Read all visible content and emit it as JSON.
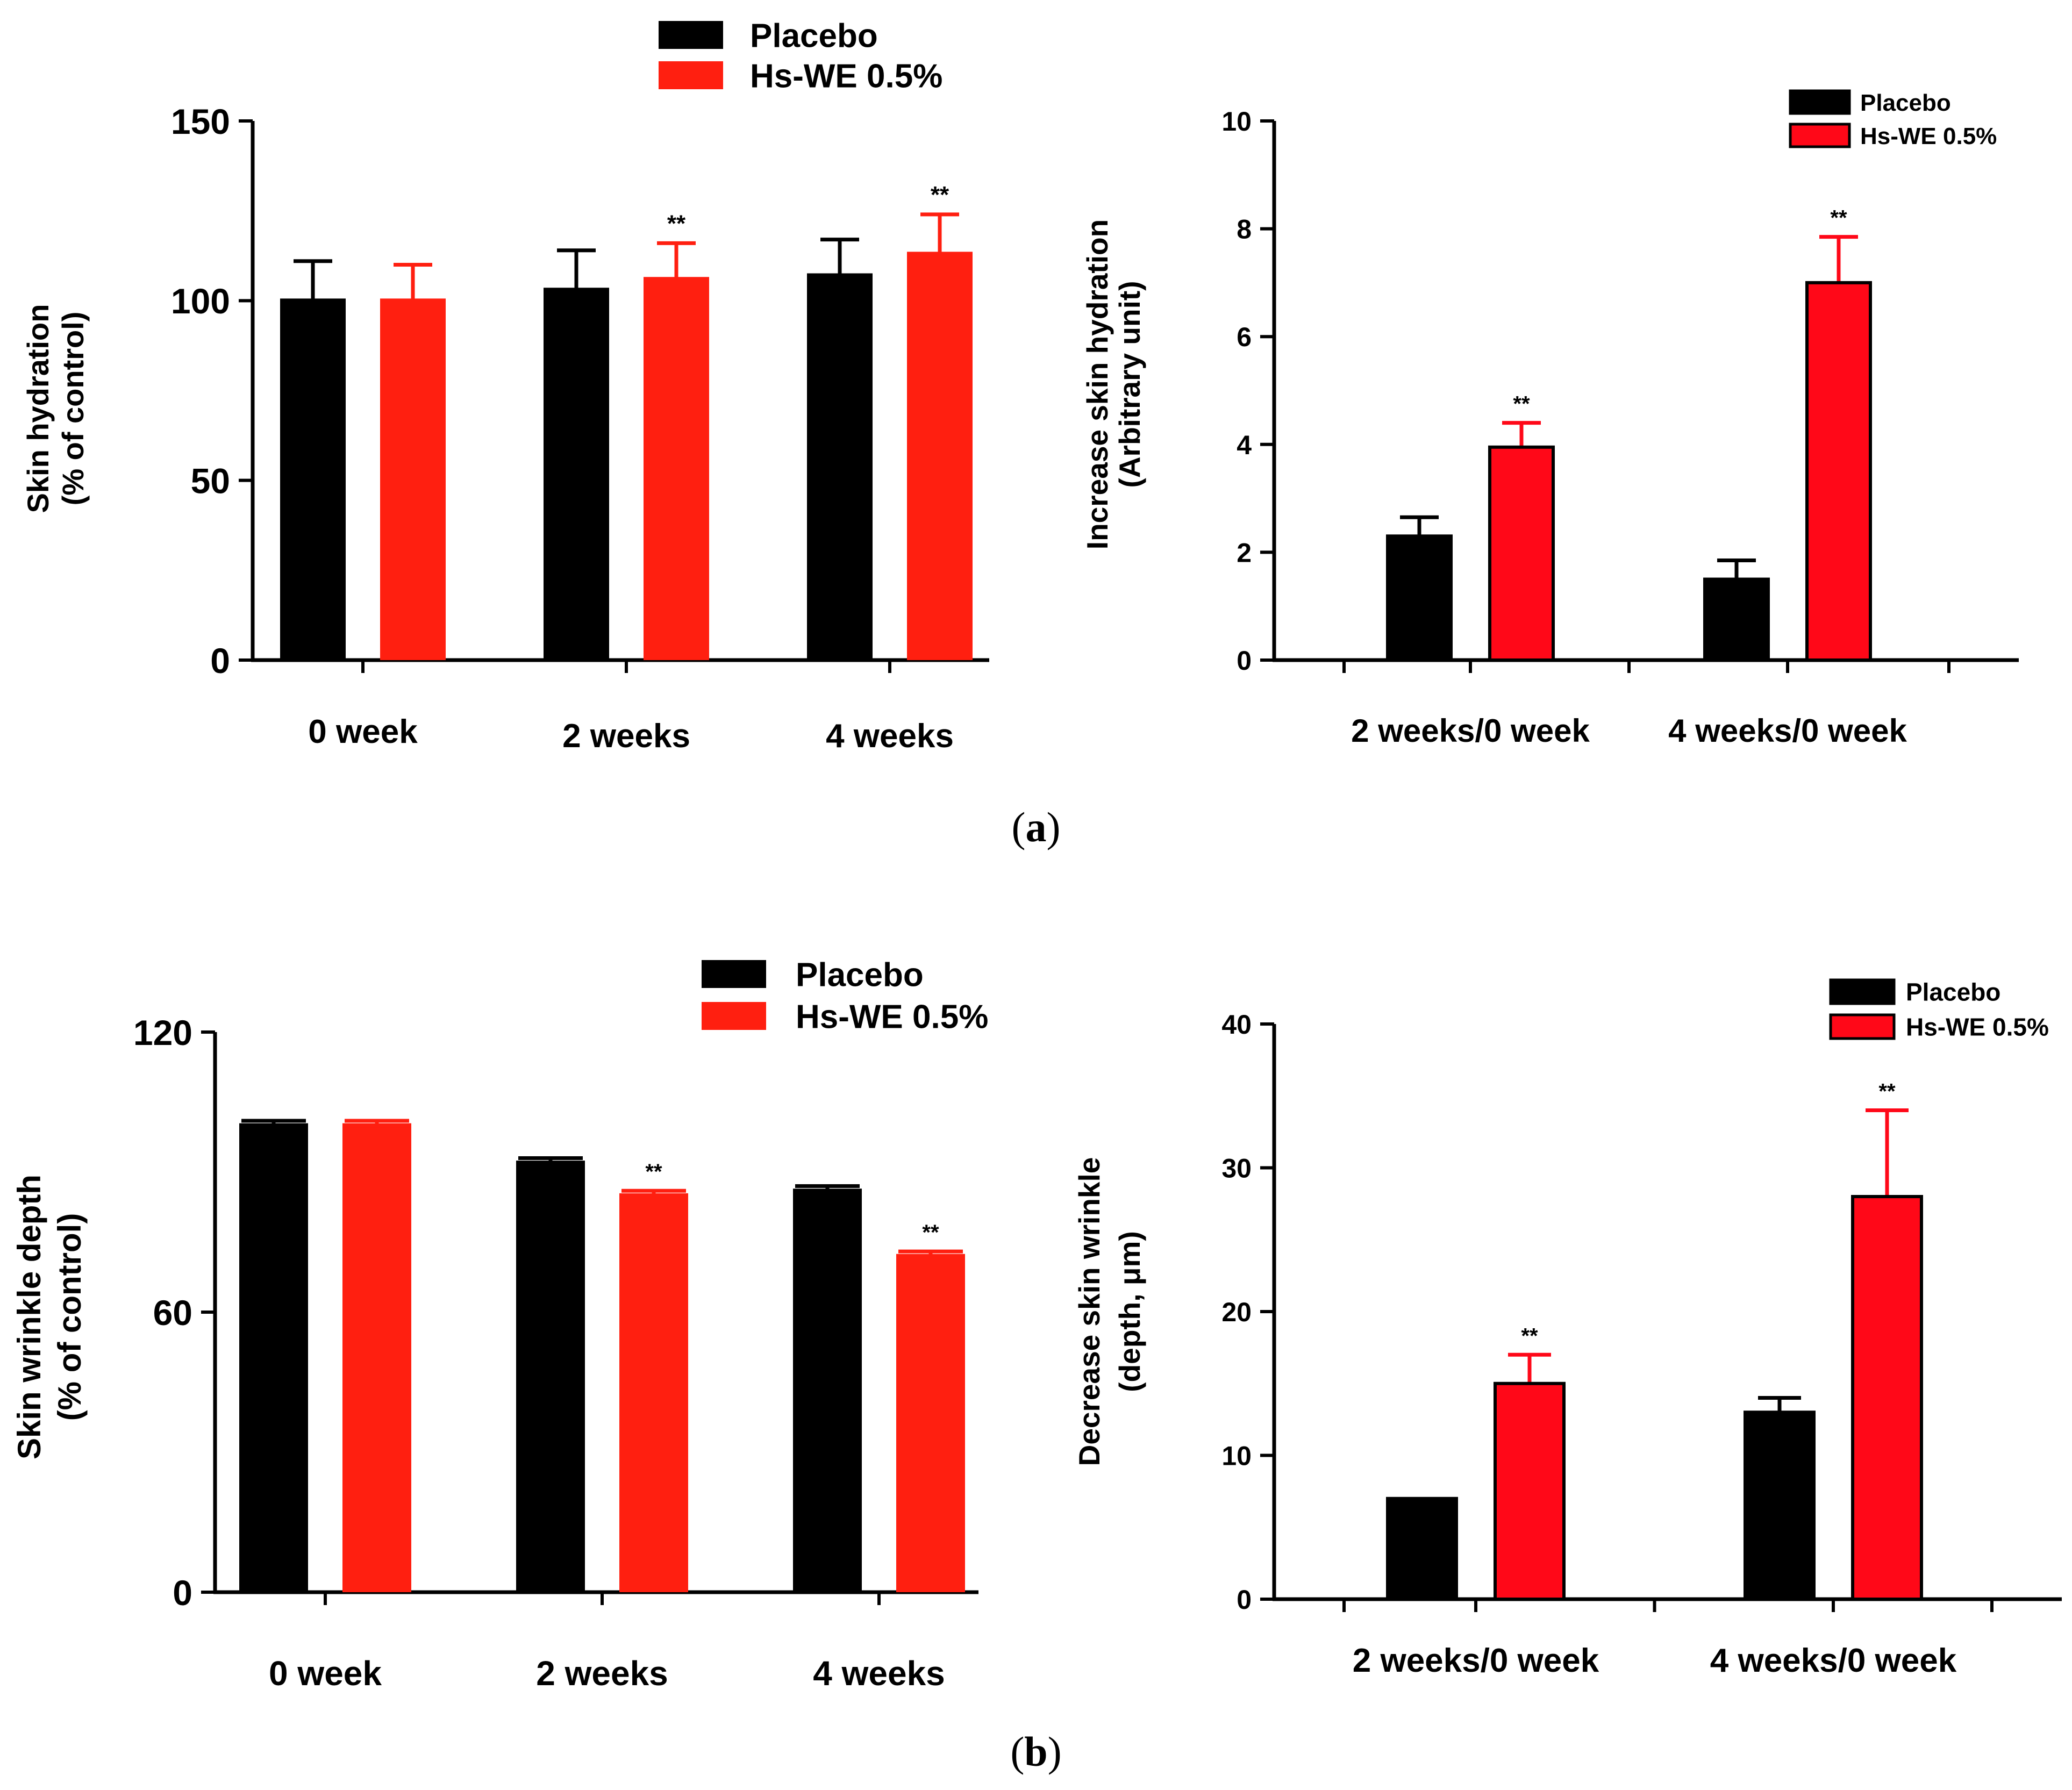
{
  "panels": [
    {
      "caption_letter": "a",
      "caption_open": "(",
      "caption_close": ")"
    },
    {
      "caption_letter": "b",
      "caption_open": "(",
      "caption_close": ")"
    }
  ],
  "colors": {
    "placebo": "#000000",
    "treatment_a": "#ff1f10",
    "treatment_b": "#ff0818"
  },
  "chart_data": [
    {
      "type": "bar",
      "panel": "a-left",
      "ylabel_line1": "Skin hydration",
      "ylabel_line2": "(% of control)",
      "categories": [
        "0 week",
        "2 weeks",
        "4 weeks"
      ],
      "ylim": [
        0,
        150
      ],
      "yticks": [
        0,
        50,
        100,
        150
      ],
      "legend": [
        "Placebo",
        "Hs-WE 0.5%"
      ],
      "series": [
        {
          "name": "Placebo",
          "values": [
            100,
            103,
            107
          ],
          "errors": [
            11,
            11,
            10
          ],
          "sig": [
            "",
            "",
            ""
          ]
        },
        {
          "name": "Hs-WE 0.5%",
          "values": [
            100,
            106,
            113
          ],
          "errors": [
            10,
            10,
            11
          ],
          "sig": [
            "",
            "**",
            "**"
          ]
        }
      ]
    },
    {
      "type": "bar",
      "panel": "a-right",
      "ylabel_line1": "Increase skin hydration",
      "ylabel_line2": "(Arbitrary unit)",
      "categories": [
        "2 weeks/0 week",
        "4 weeks/0 week"
      ],
      "ylim": [
        0,
        10
      ],
      "yticks": [
        0,
        2,
        4,
        6,
        8,
        10
      ],
      "legend": [
        "Placebo",
        "Hs-WE 0.5%"
      ],
      "series": [
        {
          "name": "Placebo",
          "values": [
            2.3,
            1.5
          ],
          "errors": [
            0.35,
            0.35
          ],
          "sig": [
            "",
            ""
          ]
        },
        {
          "name": "Hs-WE 0.5%",
          "values": [
            3.95,
            7.0
          ],
          "errors": [
            0.45,
            0.85
          ],
          "sig": [
            "**",
            "**"
          ]
        }
      ]
    },
    {
      "type": "bar",
      "panel": "b-left",
      "ylabel_line1": "Skin wrinkle depth",
      "ylabel_line2": "(% of control)",
      "categories": [
        "0 week",
        "2 weeks",
        "4 weeks"
      ],
      "ylim": [
        0,
        120
      ],
      "yticks": [
        0,
        60,
        120
      ],
      "legend": [
        "Placebo",
        "Hs-WE 0.5%"
      ],
      "series": [
        {
          "name": "Placebo",
          "values": [
            100,
            92,
            86
          ],
          "errors": [
            1,
            1,
            1
          ],
          "sig": [
            "",
            "",
            ""
          ]
        },
        {
          "name": "Hs-WE 0.5%",
          "values": [
            100,
            85,
            72
          ],
          "errors": [
            1,
            1,
            1
          ],
          "sig": [
            "",
            "**",
            "**"
          ]
        }
      ]
    },
    {
      "type": "bar",
      "panel": "b-right",
      "ylabel_line1": "Decrease skin wrinkle",
      "ylabel_line2": "(depth, μm)",
      "categories": [
        "2 weeks/0 week",
        "4 weeks/0 week"
      ],
      "ylim": [
        0,
        40
      ],
      "yticks": [
        0,
        10,
        20,
        30,
        40
      ],
      "legend": [
        "Placebo",
        "Hs-WE 0.5%"
      ],
      "series": [
        {
          "name": "Placebo",
          "values": [
            7,
            13
          ],
          "errors": [
            0,
            1
          ],
          "sig": [
            "",
            ""
          ]
        },
        {
          "name": "Hs-WE 0.5%",
          "values": [
            15,
            28
          ],
          "errors": [
            2,
            6
          ],
          "sig": [
            "**",
            "**"
          ]
        }
      ]
    }
  ]
}
